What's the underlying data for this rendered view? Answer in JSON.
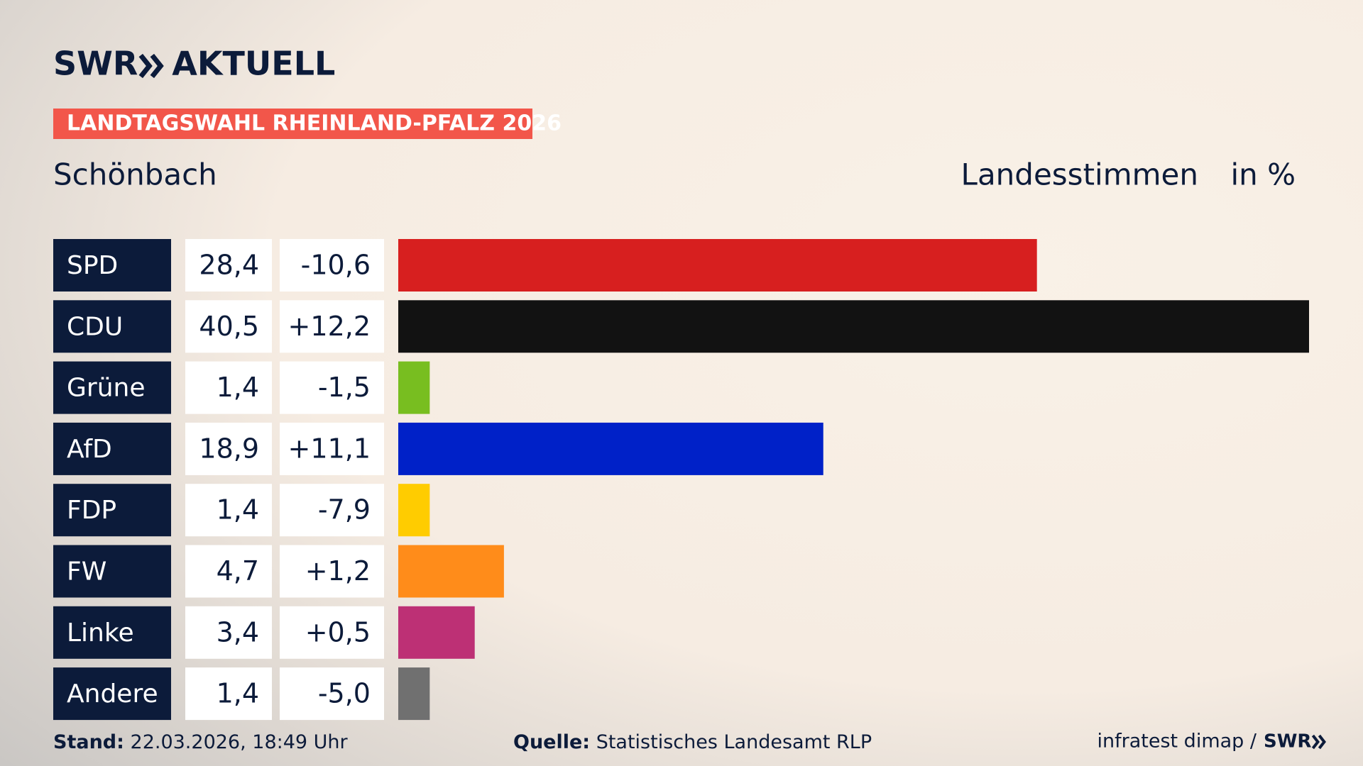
{
  "chart_data": {
    "type": "bar",
    "brand": "SWR",
    "brand_suffix": "AKTUELL",
    "title": "LANDTAGSWAHL RHEINLAND-PFALZ 2026",
    "subtitle": "Schönbach",
    "measure": "Landesstimmen",
    "unit": "in %",
    "categories": [
      "SPD",
      "CDU",
      "Grüne",
      "AfD",
      "FDP",
      "FW",
      "Linke",
      "Andere"
    ],
    "values": [
      28.4,
      40.5,
      1.4,
      18.9,
      1.4,
      4.7,
      3.4,
      1.4
    ],
    "value_labels": [
      "28,4",
      "40,5",
      "1,4",
      "18,9",
      "1,4",
      "4,7",
      "3,4",
      "1,4"
    ],
    "changes": [
      -10.6,
      12.2,
      -1.5,
      11.1,
      -7.9,
      1.2,
      0.5,
      -5.0
    ],
    "change_labels": [
      "-10,6",
      "+12,2",
      "-1,5",
      "+11,1",
      "-7,9",
      "+1,2",
      "+0,5",
      "-5,0"
    ],
    "colors": [
      "#d71f1f",
      "#121212",
      "#78be20",
      "#0021c8",
      "#ffcc00",
      "#ff8c1a",
      "#bd3075",
      "#707070"
    ],
    "footer": {
      "stand_label": "Stand:",
      "stand": "22.03.2026, 18:49 Uhr",
      "source_label": "Quelle:",
      "source": "Statistisches Landesamt RLP",
      "credit": "infratest dimap /",
      "credit_brand": "SWR"
    }
  }
}
